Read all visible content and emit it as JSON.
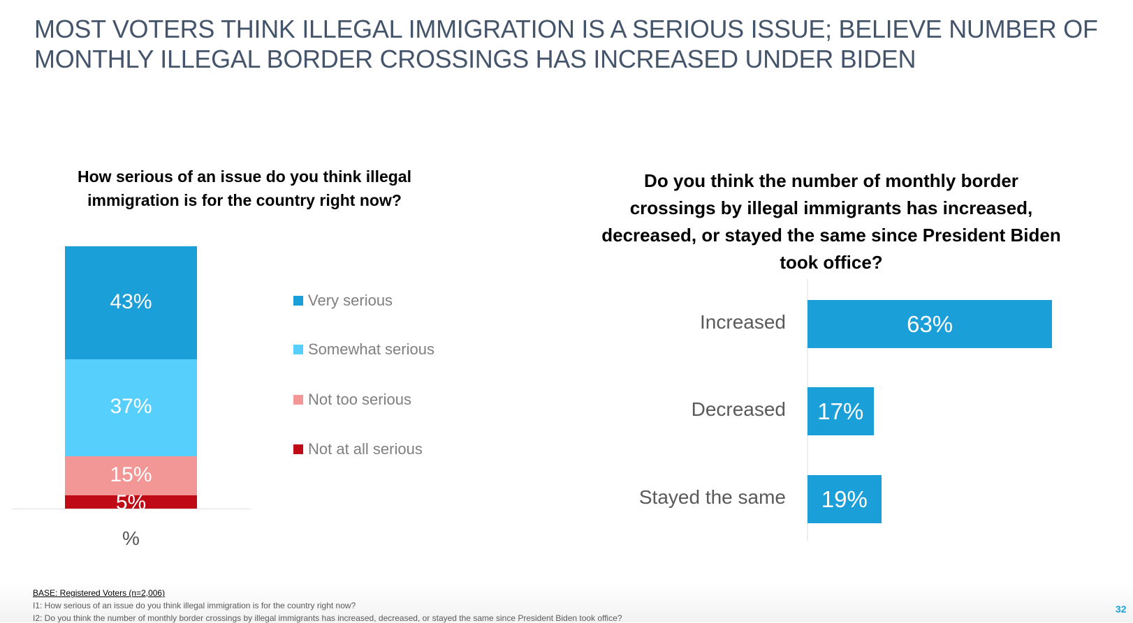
{
  "title": "MOST VOTERS THINK ILLEGAL IMMIGRATION IS A SERIOUS ISSUE; BELIEVE NUMBER OF MONTHLY ILLEGAL BORDER CROSSINGS HAS INCREASED UNDER BIDEN",
  "chart_data": [
    {
      "type": "bar",
      "stacked": true,
      "title": "How serious of an issue do you think illegal immigration is for the country right now?",
      "categories": [
        "%"
      ],
      "series": [
        {
          "name": "Very serious",
          "values": [
            43
          ],
          "label": "43%",
          "color": "#1b9fd8"
        },
        {
          "name": "Somewhat serious",
          "values": [
            37
          ],
          "label": "37%",
          "color": "#57cffc"
        },
        {
          "name": "Not too serious",
          "values": [
            15
          ],
          "label": "15%",
          "color": "#f29696"
        },
        {
          "name": "Not at all serious",
          "values": [
            5
          ],
          "label": "5%",
          "color": "#c00a15"
        }
      ],
      "legend": "right"
    },
    {
      "type": "bar",
      "orientation": "horizontal",
      "title": "Do you think the number of monthly border crossings by illegal immigrants has increased, decreased, or stayed the same since President Biden took office?",
      "categories": [
        "Increased",
        "Decreased",
        "Stayed the same"
      ],
      "values": [
        63,
        17,
        19
      ],
      "labels": [
        "63%",
        "17%",
        "19%"
      ],
      "color": "#1b9fd8"
    }
  ],
  "footer": {
    "base": "BASE: Registered Voters (n=2,006)",
    "note1": "I1: How serious of an issue do you think illegal immigration is for the country right now?",
    "note2": "I2: Do you think the number of monthly border crossings by illegal immigrants has increased, decreased, or stayed the same since President Biden took office?",
    "page": "32"
  }
}
